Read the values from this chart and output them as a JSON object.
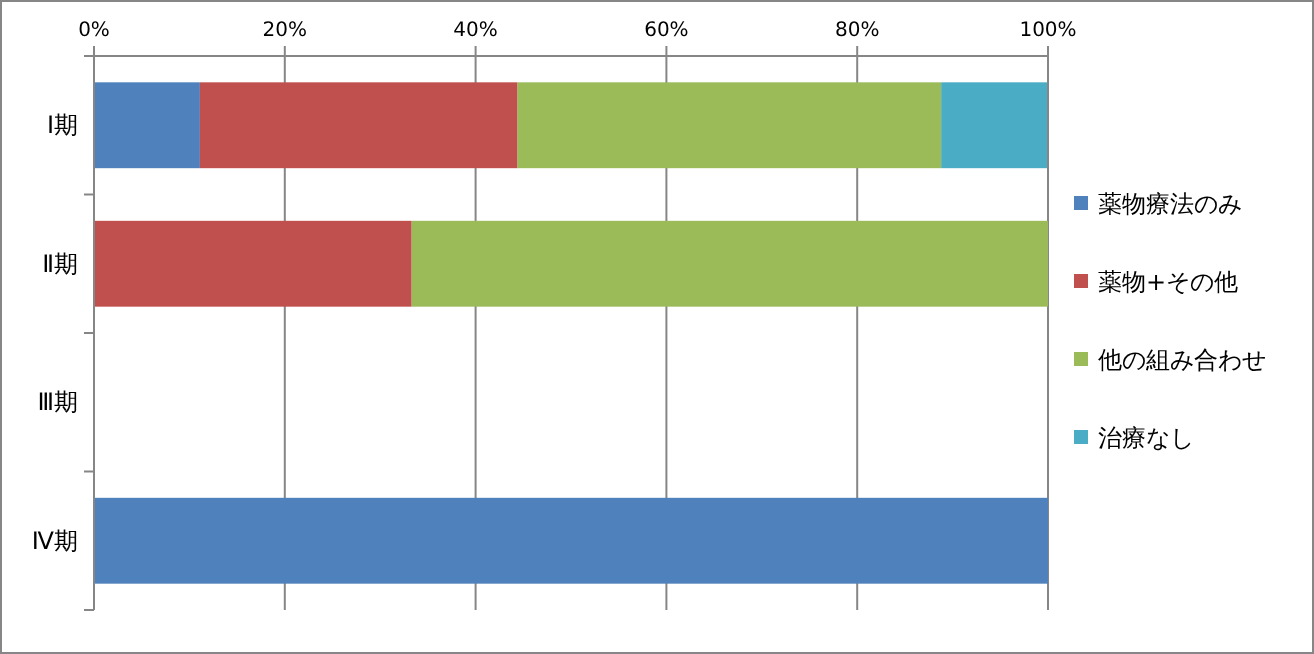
{
  "chart_data": {
    "type": "bar",
    "orientation": "horizontal",
    "stacked": true,
    "categories": [
      "Ⅰ期",
      "Ⅱ期",
      "Ⅲ期",
      "Ⅳ期"
    ],
    "series": [
      {
        "name": "薬物療法のみ",
        "color": "#4f81bd",
        "values": [
          11.1,
          0,
          0,
          100
        ]
      },
      {
        "name": "薬物+その他",
        "color": "#c0504d",
        "values": [
          33.3,
          33.3,
          0,
          0
        ]
      },
      {
        "name": "他の組み合わせ",
        "color": "#9bbb59",
        "values": [
          44.4,
          66.7,
          0,
          0
        ]
      },
      {
        "name": "治療なし",
        "color": "#4bacc6",
        "values": [
          11.1,
          0,
          0,
          0
        ]
      }
    ],
    "xlim": [
      0,
      100
    ],
    "xticks": [
      {
        "value": 0,
        "label": "0%"
      },
      {
        "value": 20,
        "label": "20%"
      },
      {
        "value": 40,
        "label": "40%"
      },
      {
        "value": 60,
        "label": "60%"
      },
      {
        "value": 80,
        "label": "80%"
      },
      {
        "value": 100,
        "label": "100%"
      }
    ],
    "grid": "x",
    "legend": "right"
  }
}
